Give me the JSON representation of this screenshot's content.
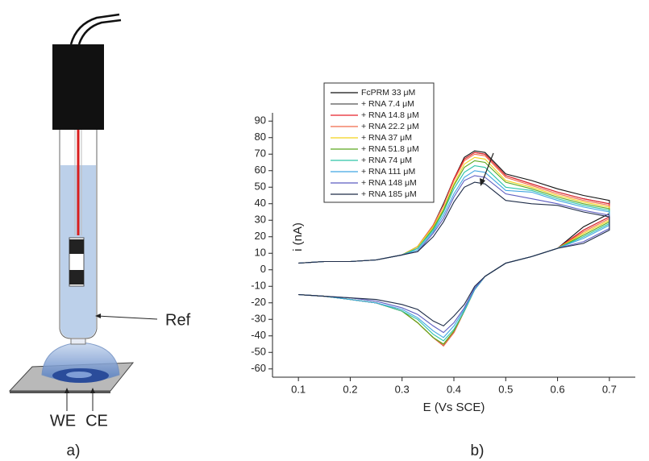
{
  "chart_data": {
    "type": "line",
    "xlabel": "E (Vs SCE)",
    "ylabel": "i (nA)",
    "xlim": [
      0.05,
      0.75
    ],
    "ylim": [
      -65,
      95
    ],
    "xticks": [
      0.1,
      0.2,
      0.3,
      0.4,
      0.5,
      0.6,
      0.7
    ],
    "yticks": [
      -60,
      -50,
      -40,
      -30,
      -20,
      -10,
      0,
      10,
      20,
      30,
      40,
      50,
      60,
      70,
      80,
      90
    ],
    "legend": "upper-left",
    "x": [
      0.1,
      0.15,
      0.2,
      0.25,
      0.3,
      0.33,
      0.36,
      0.38,
      0.4,
      0.42,
      0.44,
      0.46,
      0.5,
      0.55,
      0.6,
      0.65,
      0.7,
      0.7,
      0.65,
      0.6,
      0.55,
      0.5,
      0.46,
      0.44,
      0.42,
      0.4,
      0.38,
      0.36,
      0.33,
      0.3,
      0.25,
      0.2,
      0.15,
      0.1
    ],
    "series": [
      {
        "name": "FcPRM 33 μM",
        "color": "#111111",
        "values": [
          4,
          5,
          5,
          6,
          9,
          14,
          27,
          40,
          55,
          68,
          72,
          71,
          58,
          54,
          49,
          45,
          42,
          34,
          26,
          13,
          8,
          4,
          -4,
          -12,
          -25,
          -38,
          -46,
          -41,
          -32,
          -25,
          -20,
          -18,
          -16,
          -15
        ]
      },
      {
        "name": "+ RNA 7.4 μM",
        "color": "#555555",
        "values": [
          4,
          5,
          5,
          6,
          9,
          14,
          27,
          39,
          55,
          67,
          71,
          70,
          57,
          52,
          47,
          43,
          40,
          32,
          24,
          13,
          8,
          4,
          -4,
          -12,
          -25,
          -37,
          -45,
          -41,
          -32,
          -25,
          -20,
          -18,
          -16,
          -15
        ]
      },
      {
        "name": "+ RNA 14.8 μM",
        "color": "#e8202a",
        "values": [
          4,
          5,
          5,
          6,
          9,
          14,
          27,
          39,
          55,
          67,
          71,
          70,
          57,
          52,
          47,
          43,
          40,
          32,
          24,
          13,
          8,
          4,
          -4,
          -12,
          -25,
          -38,
          -46,
          -41,
          -32,
          -25,
          -20,
          -18,
          -16,
          -15
        ]
      },
      {
        "name": "+ RNA 22.2 μM",
        "color": "#f06a4a",
        "values": [
          4,
          5,
          5,
          6,
          9,
          14,
          27,
          39,
          54,
          66,
          70,
          69,
          56,
          51,
          46,
          42,
          39,
          31,
          23,
          13,
          8,
          4,
          -4,
          -12,
          -25,
          -38,
          -46,
          -41,
          -32,
          -25,
          -20,
          -18,
          -16,
          -15
        ]
      },
      {
        "name": "+ RNA 37 μM",
        "color": "#f2d21a",
        "values": [
          4,
          5,
          5,
          6,
          9,
          14,
          26,
          37,
          52,
          64,
          68,
          67,
          54,
          50,
          45,
          41,
          38,
          30,
          22,
          13,
          8,
          4,
          -4,
          -12,
          -25,
          -37,
          -45,
          -41,
          -32,
          -25,
          -20,
          -18,
          -16,
          -15
        ]
      },
      {
        "name": "+ RNA 51.8 μM",
        "color": "#5aa81e",
        "values": [
          4,
          5,
          5,
          6,
          9,
          13,
          25,
          36,
          51,
          62,
          66,
          65,
          53,
          49,
          44,
          40,
          37,
          29,
          21,
          13,
          8,
          4,
          -4,
          -12,
          -25,
          -37,
          -45,
          -41,
          -32,
          -25,
          -20,
          -18,
          -16,
          -15
        ]
      },
      {
        "name": "+ RNA 74 μM",
        "color": "#2ec4a8",
        "values": [
          4,
          5,
          5,
          6,
          9,
          13,
          24,
          35,
          49,
          59,
          63,
          62,
          50,
          48,
          43,
          39,
          36,
          28,
          20,
          13,
          8,
          4,
          -4,
          -12,
          -25,
          -36,
          -43,
          -39,
          -30,
          -25,
          -20,
          -18,
          -16,
          -15
        ]
      },
      {
        "name": "+ RNA 111 μM",
        "color": "#42a6e2",
        "values": [
          4,
          5,
          5,
          6,
          9,
          12,
          23,
          33,
          46,
          56,
          60,
          59,
          48,
          47,
          42,
          38,
          35,
          27,
          19,
          13,
          8,
          4,
          -4,
          -12,
          -24,
          -34,
          -41,
          -37,
          -29,
          -24,
          -20,
          -18,
          -16,
          -15
        ]
      },
      {
        "name": "+ RNA 148 μM",
        "color": "#5c5cc0",
        "values": [
          4,
          5,
          5,
          6,
          9,
          11,
          22,
          31,
          44,
          54,
          57,
          56,
          46,
          43,
          40,
          36,
          33,
          25,
          17,
          13,
          8,
          4,
          -4,
          -11,
          -23,
          -32,
          -38,
          -34,
          -27,
          -23,
          -19,
          -17,
          -16,
          -15
        ]
      },
      {
        "name": "+ RNA 185 μM",
        "color": "#1e2c48",
        "values": [
          4,
          5,
          5,
          6,
          9,
          11,
          20,
          29,
          41,
          50,
          53,
          52,
          42,
          40,
          39,
          35,
          32,
          24,
          16,
          13,
          8,
          4,
          -4,
          -10,
          -21,
          -28,
          -34,
          -31,
          -24,
          -21,
          -18,
          -17,
          -16,
          -15
        ]
      }
    ]
  },
  "diagram": {
    "ref": "Ref",
    "we": "WE",
    "ce": "CE"
  },
  "panels": [
    "a)",
    "b)"
  ]
}
